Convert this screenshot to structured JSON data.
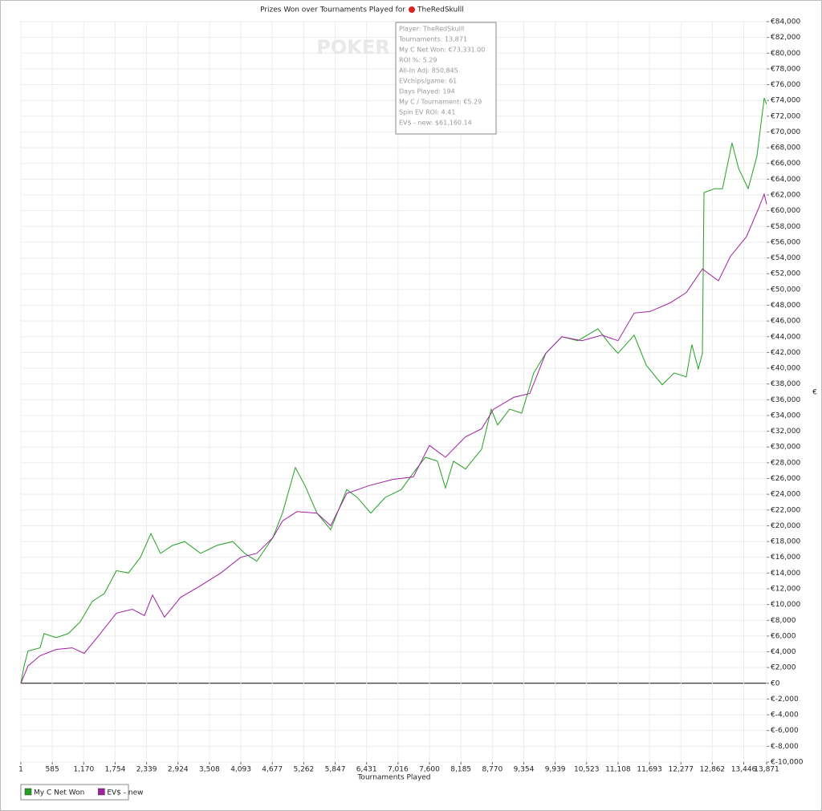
{
  "chart_data": {
    "type": "line",
    "title": "Prizes Won over Tournaments Played for",
    "player": "TheRedSkulll",
    "watermark": "POKER",
    "xlabel": "Tournaments Played",
    "ylabel": "€",
    "xlim": [
      1,
      13871
    ],
    "ylim": [
      -10000,
      84000
    ],
    "grid": true,
    "legend": "bottom-left",
    "xticks": [
      1,
      585,
      {
        "value": 1170,
        "label": "1,170"
      },
      {
        "value": 1754,
        "label": "1,754"
      },
      {
        "value": 2339,
        "label": "2,339"
      },
      {
        "value": 2924,
        "label": "2,924"
      },
      {
        "value": 3508,
        "label": "3,508"
      },
      {
        "value": 4093,
        "label": "4,093"
      },
      {
        "value": 4677,
        "label": "4,677"
      },
      {
        "value": 5262,
        "label": "5,262"
      },
      {
        "value": 5847,
        "label": "5,847"
      },
      {
        "value": 6431,
        "label": "6,431"
      },
      {
        "value": 7016,
        "label": "7,016"
      },
      {
        "value": 7600,
        "label": "7,600"
      },
      {
        "value": 8185,
        "label": "8,185"
      },
      {
        "value": 8770,
        "label": "8,770"
      },
      {
        "value": 9354,
        "label": "9,354"
      },
      {
        "value": 9939,
        "label": "9,939"
      },
      {
        "value": 10523,
        "label": "10,523"
      },
      {
        "value": 11108,
        "label": "11,108"
      },
      {
        "value": 11693,
        "label": "11,693"
      },
      {
        "value": 12277,
        "label": "12,277"
      },
      {
        "value": 12862,
        "label": "12,862"
      },
      {
        "value": 13446,
        "label": "13,446"
      },
      {
        "value": 13871,
        "label": "13,871"
      }
    ],
    "yticks": [
      {
        "value": 84000,
        "label": "€84,000"
      },
      {
        "value": 82000,
        "label": "€82,000"
      },
      {
        "value": 80000,
        "label": "€80,000"
      },
      {
        "value": 78000,
        "label": "€78,000"
      },
      {
        "value": 76000,
        "label": "€76,000"
      },
      {
        "value": 74000,
        "label": "€74,000"
      },
      {
        "value": 72000,
        "label": "€72,000"
      },
      {
        "value": 70000,
        "label": "€70,000"
      },
      {
        "value": 68000,
        "label": "€68,000"
      },
      {
        "value": 66000,
        "label": "€66,000"
      },
      {
        "value": 64000,
        "label": "€64,000"
      },
      {
        "value": 62000,
        "label": "€62,000"
      },
      {
        "value": 60000,
        "label": "€60,000"
      },
      {
        "value": 58000,
        "label": "€58,000"
      },
      {
        "value": 56000,
        "label": "€56,000"
      },
      {
        "value": 54000,
        "label": "€54,000"
      },
      {
        "value": 52000,
        "label": "€52,000"
      },
      {
        "value": 50000,
        "label": "€50,000"
      },
      {
        "value": 48000,
        "label": "€48,000"
      },
      {
        "value": 46000,
        "label": "€46,000"
      },
      {
        "value": 44000,
        "label": "€44,000"
      },
      {
        "value": 42000,
        "label": "€42,000"
      },
      {
        "value": 40000,
        "label": "€40,000"
      },
      {
        "value": 38000,
        "label": "€38,000"
      },
      {
        "value": 36000,
        "label": "€36,000"
      },
      {
        "value": 34000,
        "label": "€34,000"
      },
      {
        "value": 32000,
        "label": "€32,000"
      },
      {
        "value": 30000,
        "label": "€30,000"
      },
      {
        "value": 28000,
        "label": "€28,000"
      },
      {
        "value": 26000,
        "label": "€26,000"
      },
      {
        "value": 24000,
        "label": "€24,000"
      },
      {
        "value": 22000,
        "label": "€22,000"
      },
      {
        "value": 20000,
        "label": "€20,000"
      },
      {
        "value": 18000,
        "label": "€18,000"
      },
      {
        "value": 16000,
        "label": "€16,000"
      },
      {
        "value": 14000,
        "label": "€14,000"
      },
      {
        "value": 12000,
        "label": "€12,000"
      },
      {
        "value": 10000,
        "label": "€10,000"
      },
      {
        "value": 8000,
        "label": "€8,000"
      },
      {
        "value": 6000,
        "label": "€6,000"
      },
      {
        "value": 4000,
        "label": "€4,000"
      },
      {
        "value": 2000,
        "label": "€2,000"
      },
      {
        "value": 0,
        "label": "€0"
      },
      {
        "value": -2000,
        "label": "€-2,000"
      },
      {
        "value": -4000,
        "label": "€-4,000"
      },
      {
        "value": -6000,
        "label": "€-6,000"
      },
      {
        "value": -8000,
        "label": "€-8,000"
      },
      {
        "value": -10000,
        "label": "€-10,000"
      }
    ],
    "tooltip": [
      "Player: TheRedSkulll",
      "Tournaments: 13,871",
      "My C Net Won: €73,331.00",
      "ROI %: 5.29",
      "All-In Adj: 850,845",
      "EVchips/game: 61",
      "Days Played: 194",
      "My C / Tournament: €5.29",
      "Spin EV ROI: 4.41",
      "EV$ - new: $61,160.14"
    ],
    "series": [
      {
        "name": "My C Net Won",
        "color": "#22a022",
        "x": [
          1,
          60,
          134,
          358,
          433,
          657,
          881,
          1105,
          1329,
          1553,
          1777,
          2001,
          2225,
          2419,
          2598,
          2822,
          3046,
          3344,
          3643,
          3942,
          4165,
          4389,
          4688,
          4867,
          5106,
          5285,
          5509,
          5763,
          6061,
          6256,
          6509,
          6778,
          7077,
          7301,
          7525,
          7749,
          7898,
          8047,
          8271,
          8570,
          8749,
          8868,
          9092,
          9316,
          9540,
          9764,
          10063,
          10361,
          10734,
          10958,
          11108,
          11407,
          11631,
          11929,
          12153,
          12377,
          12481,
          12601,
          12676,
          12706,
          12900,
          13050,
          13228,
          13348,
          13527,
          13691,
          13826,
          13871
        ],
        "values": [
          0,
          2200,
          4100,
          4500,
          6300,
          5800,
          6300,
          7800,
          10400,
          11400,
          14300,
          14000,
          16000,
          19000,
          16500,
          17500,
          18000,
          16500,
          17500,
          18000,
          16500,
          15500,
          18500,
          21600,
          27400,
          25100,
          21600,
          19500,
          24600,
          23600,
          21600,
          23600,
          24600,
          26700,
          28700,
          28200,
          24800,
          28200,
          27200,
          29700,
          34800,
          32800,
          34800,
          34300,
          39400,
          41900,
          44000,
          43500,
          45000,
          43000,
          41900,
          44200,
          40400,
          37900,
          39400,
          38900,
          43000,
          39900,
          41900,
          62300,
          62800,
          62800,
          68600,
          65400,
          62800,
          66900,
          74300,
          73500
        ]
      },
      {
        "name": "EV$ - new",
        "color": "#a020a0",
        "x": [
          1,
          134,
          358,
          657,
          955,
          1179,
          1478,
          1777,
          2075,
          2299,
          2449,
          2672,
          2971,
          3344,
          3718,
          4091,
          4389,
          4688,
          4867,
          5136,
          5509,
          5763,
          6061,
          6479,
          6927,
          7301,
          7600,
          7898,
          8271,
          8570,
          8794,
          9167,
          9466,
          9764,
          10063,
          10436,
          10809,
          11108,
          11407,
          11705,
          12078,
          12377,
          12676,
          12975,
          13198,
          13497,
          13721,
          13826,
          13871
        ],
        "values": [
          0,
          2200,
          3500,
          4300,
          4500,
          3800,
          6300,
          8900,
          9400,
          8600,
          11200,
          8400,
          10900,
          12400,
          14000,
          16000,
          16500,
          18500,
          20600,
          21800,
          21600,
          20000,
          24100,
          25100,
          25900,
          26200,
          30200,
          28700,
          31300,
          32300,
          34800,
          36300,
          36800,
          41900,
          44000,
          43500,
          44200,
          43500,
          47000,
          47200,
          48300,
          49600,
          52600,
          51100,
          54200,
          56700,
          60300,
          62100,
          60800
        ]
      }
    ]
  }
}
